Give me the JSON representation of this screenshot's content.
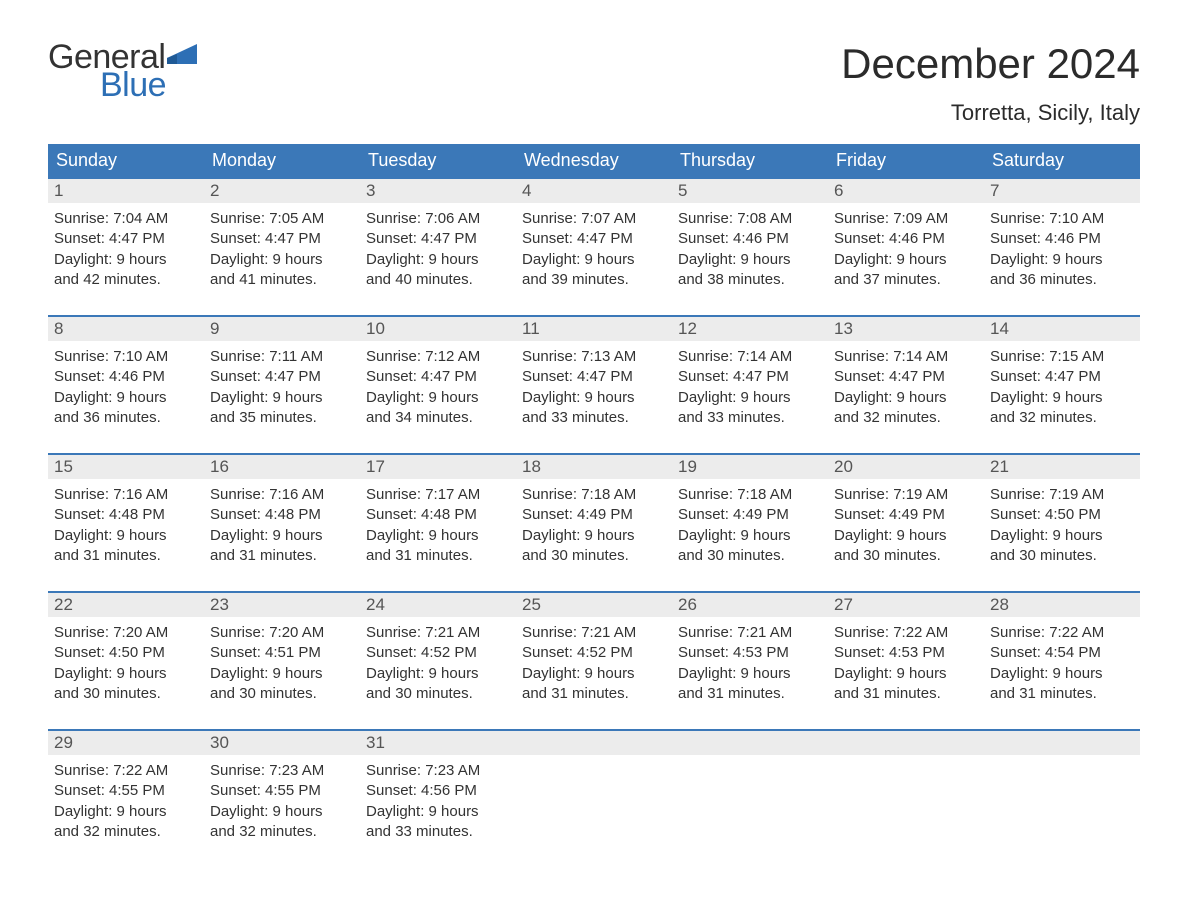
{
  "logo": {
    "word1": "General",
    "word2": "Blue",
    "shape_color": "#2d6fb5",
    "text_color_general": "#333333",
    "text_color_blue": "#2d6fb5"
  },
  "header": {
    "month_title": "December 2024",
    "location": "Torretta, Sicily, Italy"
  },
  "colors": {
    "header_bg": "#3b78b8",
    "header_text": "#ffffff",
    "daynum_bg": "#ececec",
    "week_border": "#3b78b8",
    "body_text": "#333333",
    "background": "#ffffff"
  },
  "weekdays": [
    "Sunday",
    "Monday",
    "Tuesday",
    "Wednesday",
    "Thursday",
    "Friday",
    "Saturday"
  ],
  "weeks": [
    [
      {
        "day": "1",
        "sunrise": "Sunrise: 7:04 AM",
        "sunset": "Sunset: 4:47 PM",
        "daylight1": "Daylight: 9 hours",
        "daylight2": "and 42 minutes."
      },
      {
        "day": "2",
        "sunrise": "Sunrise: 7:05 AM",
        "sunset": "Sunset: 4:47 PM",
        "daylight1": "Daylight: 9 hours",
        "daylight2": "and 41 minutes."
      },
      {
        "day": "3",
        "sunrise": "Sunrise: 7:06 AM",
        "sunset": "Sunset: 4:47 PM",
        "daylight1": "Daylight: 9 hours",
        "daylight2": "and 40 minutes."
      },
      {
        "day": "4",
        "sunrise": "Sunrise: 7:07 AM",
        "sunset": "Sunset: 4:47 PM",
        "daylight1": "Daylight: 9 hours",
        "daylight2": "and 39 minutes."
      },
      {
        "day": "5",
        "sunrise": "Sunrise: 7:08 AM",
        "sunset": "Sunset: 4:46 PM",
        "daylight1": "Daylight: 9 hours",
        "daylight2": "and 38 minutes."
      },
      {
        "day": "6",
        "sunrise": "Sunrise: 7:09 AM",
        "sunset": "Sunset: 4:46 PM",
        "daylight1": "Daylight: 9 hours",
        "daylight2": "and 37 minutes."
      },
      {
        "day": "7",
        "sunrise": "Sunrise: 7:10 AM",
        "sunset": "Sunset: 4:46 PM",
        "daylight1": "Daylight: 9 hours",
        "daylight2": "and 36 minutes."
      }
    ],
    [
      {
        "day": "8",
        "sunrise": "Sunrise: 7:10 AM",
        "sunset": "Sunset: 4:46 PM",
        "daylight1": "Daylight: 9 hours",
        "daylight2": "and 36 minutes."
      },
      {
        "day": "9",
        "sunrise": "Sunrise: 7:11 AM",
        "sunset": "Sunset: 4:47 PM",
        "daylight1": "Daylight: 9 hours",
        "daylight2": "and 35 minutes."
      },
      {
        "day": "10",
        "sunrise": "Sunrise: 7:12 AM",
        "sunset": "Sunset: 4:47 PM",
        "daylight1": "Daylight: 9 hours",
        "daylight2": "and 34 minutes."
      },
      {
        "day": "11",
        "sunrise": "Sunrise: 7:13 AM",
        "sunset": "Sunset: 4:47 PM",
        "daylight1": "Daylight: 9 hours",
        "daylight2": "and 33 minutes."
      },
      {
        "day": "12",
        "sunrise": "Sunrise: 7:14 AM",
        "sunset": "Sunset: 4:47 PM",
        "daylight1": "Daylight: 9 hours",
        "daylight2": "and 33 minutes."
      },
      {
        "day": "13",
        "sunrise": "Sunrise: 7:14 AM",
        "sunset": "Sunset: 4:47 PM",
        "daylight1": "Daylight: 9 hours",
        "daylight2": "and 32 minutes."
      },
      {
        "day": "14",
        "sunrise": "Sunrise: 7:15 AM",
        "sunset": "Sunset: 4:47 PM",
        "daylight1": "Daylight: 9 hours",
        "daylight2": "and 32 minutes."
      }
    ],
    [
      {
        "day": "15",
        "sunrise": "Sunrise: 7:16 AM",
        "sunset": "Sunset: 4:48 PM",
        "daylight1": "Daylight: 9 hours",
        "daylight2": "and 31 minutes."
      },
      {
        "day": "16",
        "sunrise": "Sunrise: 7:16 AM",
        "sunset": "Sunset: 4:48 PM",
        "daylight1": "Daylight: 9 hours",
        "daylight2": "and 31 minutes."
      },
      {
        "day": "17",
        "sunrise": "Sunrise: 7:17 AM",
        "sunset": "Sunset: 4:48 PM",
        "daylight1": "Daylight: 9 hours",
        "daylight2": "and 31 minutes."
      },
      {
        "day": "18",
        "sunrise": "Sunrise: 7:18 AM",
        "sunset": "Sunset: 4:49 PM",
        "daylight1": "Daylight: 9 hours",
        "daylight2": "and 30 minutes."
      },
      {
        "day": "19",
        "sunrise": "Sunrise: 7:18 AM",
        "sunset": "Sunset: 4:49 PM",
        "daylight1": "Daylight: 9 hours",
        "daylight2": "and 30 minutes."
      },
      {
        "day": "20",
        "sunrise": "Sunrise: 7:19 AM",
        "sunset": "Sunset: 4:49 PM",
        "daylight1": "Daylight: 9 hours",
        "daylight2": "and 30 minutes."
      },
      {
        "day": "21",
        "sunrise": "Sunrise: 7:19 AM",
        "sunset": "Sunset: 4:50 PM",
        "daylight1": "Daylight: 9 hours",
        "daylight2": "and 30 minutes."
      }
    ],
    [
      {
        "day": "22",
        "sunrise": "Sunrise: 7:20 AM",
        "sunset": "Sunset: 4:50 PM",
        "daylight1": "Daylight: 9 hours",
        "daylight2": "and 30 minutes."
      },
      {
        "day": "23",
        "sunrise": "Sunrise: 7:20 AM",
        "sunset": "Sunset: 4:51 PM",
        "daylight1": "Daylight: 9 hours",
        "daylight2": "and 30 minutes."
      },
      {
        "day": "24",
        "sunrise": "Sunrise: 7:21 AM",
        "sunset": "Sunset: 4:52 PM",
        "daylight1": "Daylight: 9 hours",
        "daylight2": "and 30 minutes."
      },
      {
        "day": "25",
        "sunrise": "Sunrise: 7:21 AM",
        "sunset": "Sunset: 4:52 PM",
        "daylight1": "Daylight: 9 hours",
        "daylight2": "and 31 minutes."
      },
      {
        "day": "26",
        "sunrise": "Sunrise: 7:21 AM",
        "sunset": "Sunset: 4:53 PM",
        "daylight1": "Daylight: 9 hours",
        "daylight2": "and 31 minutes."
      },
      {
        "day": "27",
        "sunrise": "Sunrise: 7:22 AM",
        "sunset": "Sunset: 4:53 PM",
        "daylight1": "Daylight: 9 hours",
        "daylight2": "and 31 minutes."
      },
      {
        "day": "28",
        "sunrise": "Sunrise: 7:22 AM",
        "sunset": "Sunset: 4:54 PM",
        "daylight1": "Daylight: 9 hours",
        "daylight2": "and 31 minutes."
      }
    ],
    [
      {
        "day": "29",
        "sunrise": "Sunrise: 7:22 AM",
        "sunset": "Sunset: 4:55 PM",
        "daylight1": "Daylight: 9 hours",
        "daylight2": "and 32 minutes."
      },
      {
        "day": "30",
        "sunrise": "Sunrise: 7:23 AM",
        "sunset": "Sunset: 4:55 PM",
        "daylight1": "Daylight: 9 hours",
        "daylight2": "and 32 minutes."
      },
      {
        "day": "31",
        "sunrise": "Sunrise: 7:23 AM",
        "sunset": "Sunset: 4:56 PM",
        "daylight1": "Daylight: 9 hours",
        "daylight2": "and 33 minutes."
      },
      {
        "empty": true
      },
      {
        "empty": true
      },
      {
        "empty": true
      },
      {
        "empty": true
      }
    ]
  ]
}
